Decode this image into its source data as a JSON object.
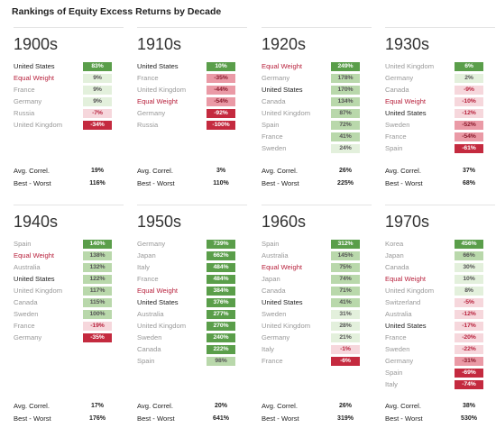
{
  "title": "Rankings of Equity Excess Returns by Decade",
  "labels": {
    "correl": "Avg. Correl.",
    "best_worst": "Best - Worst"
  },
  "colors": {
    "positive_strong": "#5a9e4a",
    "positive_medium": "#b9d8ab",
    "positive_light": "#e3f0dc",
    "near_zero": "#ffffff",
    "negative_light": "#f6d7dc",
    "negative_medium": "#ea9aa6",
    "negative_strong": "#c42a3f",
    "equal_weight_text": "#b8223d"
  },
  "chart_data": [
    {
      "type": "table",
      "decade": "1900s",
      "avg_correl": "19%",
      "best_worst": "116%",
      "rows": [
        {
          "name": "United States",
          "value": 83,
          "label": "83%"
        },
        {
          "name": "Equal Weight",
          "value": 9,
          "label": "9%"
        },
        {
          "name": "France",
          "value": 9,
          "label": "9%"
        },
        {
          "name": "Germany",
          "value": 9,
          "label": "9%"
        },
        {
          "name": "Russia",
          "value": -7,
          "label": "-7%"
        },
        {
          "name": "United Kingdom",
          "value": -34,
          "label": "-34%"
        }
      ]
    },
    {
      "type": "table",
      "decade": "1910s",
      "avg_correl": "3%",
      "best_worst": "110%",
      "rows": [
        {
          "name": "United States",
          "value": 10,
          "label": "10%"
        },
        {
          "name": "France",
          "value": -35,
          "label": "-35%"
        },
        {
          "name": "United Kingdom",
          "value": -44,
          "label": "-44%"
        },
        {
          "name": "Equal Weight",
          "value": -54,
          "label": "-54%"
        },
        {
          "name": "Germany",
          "value": -92,
          "label": "-92%"
        },
        {
          "name": "Russia",
          "value": -100,
          "label": "-100%"
        }
      ]
    },
    {
      "type": "table",
      "decade": "1920s",
      "avg_correl": "26%",
      "best_worst": "225%",
      "rows": [
        {
          "name": "Equal Weight",
          "value": 249,
          "label": "249%"
        },
        {
          "name": "Germany",
          "value": 178,
          "label": "178%"
        },
        {
          "name": "United States",
          "value": 170,
          "label": "170%"
        },
        {
          "name": "Canada",
          "value": 134,
          "label": "134%"
        },
        {
          "name": "United Kingdom",
          "value": 87,
          "label": "87%"
        },
        {
          "name": "Spain",
          "value": 72,
          "label": "72%"
        },
        {
          "name": "France",
          "value": 41,
          "label": "41%"
        },
        {
          "name": "Sweden",
          "value": 24,
          "label": "24%"
        }
      ]
    },
    {
      "type": "table",
      "decade": "1930s",
      "avg_correl": "37%",
      "best_worst": "68%",
      "rows": [
        {
          "name": "United Kingdom",
          "value": 6,
          "label": "6%"
        },
        {
          "name": "Germany",
          "value": 2,
          "label": "2%"
        },
        {
          "name": "Canada",
          "value": -9,
          "label": "-9%"
        },
        {
          "name": "Equal Weight",
          "value": -10,
          "label": "-10%"
        },
        {
          "name": "United States",
          "value": -12,
          "label": "-12%"
        },
        {
          "name": "Sweden",
          "value": -52,
          "label": "-52%"
        },
        {
          "name": "France",
          "value": -54,
          "label": "-54%"
        },
        {
          "name": "Spain",
          "value": -61,
          "label": "-61%"
        }
      ]
    },
    {
      "type": "table",
      "decade": "1940s",
      "avg_correl": "17%",
      "best_worst": "176%",
      "rows": [
        {
          "name": "Spain",
          "value": 140,
          "label": "140%"
        },
        {
          "name": "Equal Weight",
          "value": 138,
          "label": "138%"
        },
        {
          "name": "Australia",
          "value": 132,
          "label": "132%"
        },
        {
          "name": "United States",
          "value": 122,
          "label": "122%"
        },
        {
          "name": "United Kingdom",
          "value": 117,
          "label": "117%"
        },
        {
          "name": "Canada",
          "value": 115,
          "label": "115%"
        },
        {
          "name": "Sweden",
          "value": 100,
          "label": "100%"
        },
        {
          "name": "France",
          "value": -19,
          "label": "-19%"
        },
        {
          "name": "Germany",
          "value": -35,
          "label": "-35%"
        }
      ]
    },
    {
      "type": "table",
      "decade": "1950s",
      "avg_correl": "20%",
      "best_worst": "641%",
      "rows": [
        {
          "name": "Germany",
          "value": 739,
          "label": "739%"
        },
        {
          "name": "Japan",
          "value": 662,
          "label": "662%"
        },
        {
          "name": "Italy",
          "value": 484,
          "label": "484%"
        },
        {
          "name": "France",
          "value": 484,
          "label": "484%"
        },
        {
          "name": "Equal Weight",
          "value": 384,
          "label": "384%"
        },
        {
          "name": "United States",
          "value": 376,
          "label": "376%"
        },
        {
          "name": "Australia",
          "value": 277,
          "label": "277%"
        },
        {
          "name": "United Kingdom",
          "value": 270,
          "label": "270%"
        },
        {
          "name": "Sweden",
          "value": 240,
          "label": "240%"
        },
        {
          "name": "Canada",
          "value": 222,
          "label": "222%"
        },
        {
          "name": "Spain",
          "value": 98,
          "label": "98%"
        }
      ]
    },
    {
      "type": "table",
      "decade": "1960s",
      "avg_correl": "26%",
      "best_worst": "319%",
      "rows": [
        {
          "name": "Spain",
          "value": 312,
          "label": "312%"
        },
        {
          "name": "Australia",
          "value": 145,
          "label": "145%"
        },
        {
          "name": "Equal Weight",
          "value": 75,
          "label": "75%"
        },
        {
          "name": "Japan",
          "value": 74,
          "label": "74%"
        },
        {
          "name": "Canada",
          "value": 71,
          "label": "71%"
        },
        {
          "name": "United States",
          "value": 41,
          "label": "41%"
        },
        {
          "name": "Sweden",
          "value": 31,
          "label": "31%"
        },
        {
          "name": "United Kingdom",
          "value": 28,
          "label": "28%"
        },
        {
          "name": "Germany",
          "value": 21,
          "label": "21%"
        },
        {
          "name": "Italy",
          "value": -1,
          "label": "-1%"
        },
        {
          "name": "France",
          "value": -6,
          "label": "-6%"
        }
      ]
    },
    {
      "type": "table",
      "decade": "1970s",
      "avg_correl": "38%",
      "best_worst": "530%",
      "rows": [
        {
          "name": "Korea",
          "value": 456,
          "label": "456%"
        },
        {
          "name": "Japan",
          "value": 66,
          "label": "66%"
        },
        {
          "name": "Canada",
          "value": 30,
          "label": "30%"
        },
        {
          "name": "Equal Weight",
          "value": 10,
          "label": "10%"
        },
        {
          "name": "United Kingdom",
          "value": 8,
          "label": "8%"
        },
        {
          "name": "Switzerland",
          "value": -5,
          "label": "-5%"
        },
        {
          "name": "Australia",
          "value": -12,
          "label": "-12%"
        },
        {
          "name": "United States",
          "value": -17,
          "label": "-17%"
        },
        {
          "name": "France",
          "value": -20,
          "label": "-20%"
        },
        {
          "name": "Sweden",
          "value": -22,
          "label": "-22%"
        },
        {
          "name": "Germany",
          "value": -31,
          "label": "-31%"
        },
        {
          "name": "Spain",
          "value": -69,
          "label": "-69%"
        },
        {
          "name": "Italy",
          "value": -74,
          "label": "-74%"
        }
      ]
    }
  ]
}
